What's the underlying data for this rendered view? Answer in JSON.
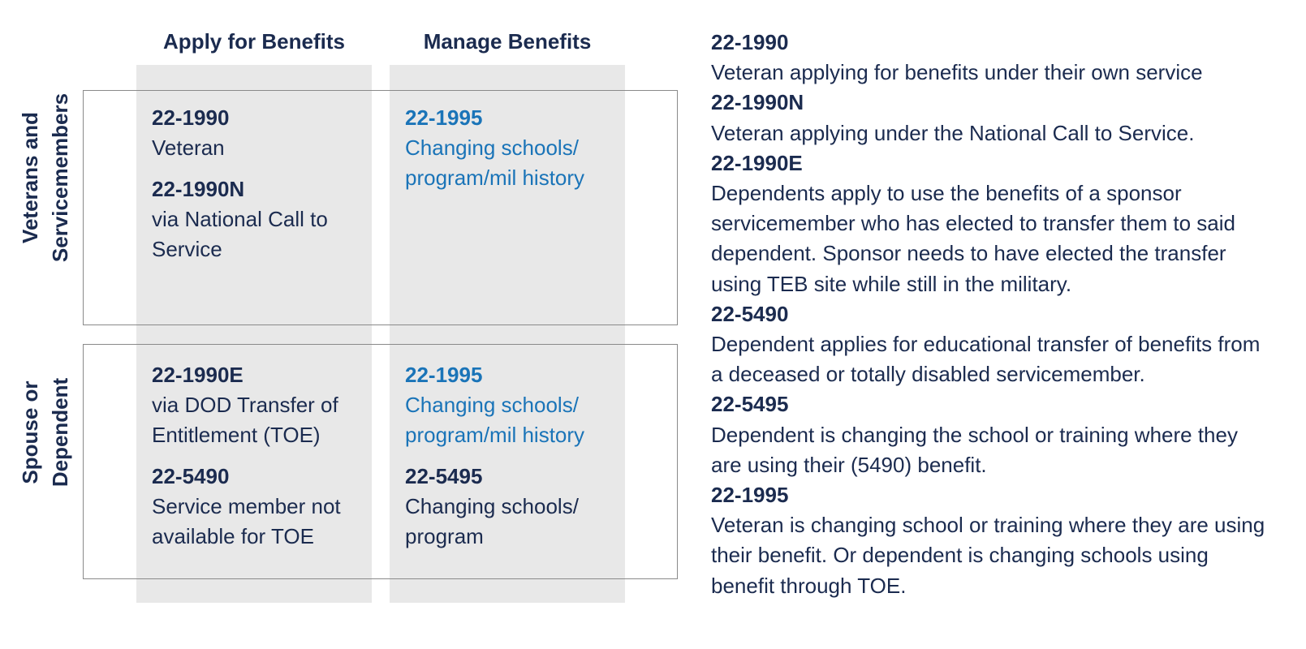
{
  "columns": {
    "apply": "Apply for Benefits",
    "manage": "Manage Benefits"
  },
  "rows": {
    "veterans": {
      "line1": "Veterans and",
      "line2": "Servicemembers"
    },
    "dependents": {
      "line1": "Spouse or",
      "line2": "Dependent"
    }
  },
  "grid": {
    "veterans_apply": [
      {
        "code": "22-1990",
        "desc": "Veteran"
      },
      {
        "code": "22-1990N",
        "desc": "via National Call to Service"
      }
    ],
    "veterans_manage": [
      {
        "code": "22-1995",
        "desc": "Changing schools/ program/mil history"
      }
    ],
    "dependents_apply": [
      {
        "code": "22-1990E",
        "desc": "via DOD Transfer of Entitlement (TOE)"
      },
      {
        "code": "22-5490",
        "desc": "Service member not available for TOE"
      }
    ],
    "dependents_manage": [
      {
        "code": "22-1995",
        "desc": "Changing schools/ program/mil history"
      },
      {
        "code": "22-5495",
        "desc": "Changing schools/ program"
      }
    ]
  },
  "legend": [
    {
      "code": "22-1990",
      "desc": "Veteran applying for benefits under their own service"
    },
    {
      "code": "22-1990N",
      "desc": "Veteran applying under the National Call to Service."
    },
    {
      "code": "22-1990E",
      "desc": "Dependents apply to use the benefits of a sponsor servicemember who has elected to transfer them to said dependent. Sponsor needs to have elected the transfer using TEB site while still in the military."
    },
    {
      "code": "22-5490",
      "desc": "Dependent applies for educational transfer of benefits from a deceased or totally disabled servicemember."
    },
    {
      "code": "22-5495",
      "desc": "Dependent is changing the school or training where they are using their (5490) benefit."
    },
    {
      "code": "22-1995",
      "desc": "Veteran is changing school or training where they are using their benefit. Or dependent is changing schools using benefit through TOE."
    }
  ],
  "colors": {
    "navy": "#1b2b4f",
    "link_blue": "#1a74b8",
    "column_gray": "#e8e8e8",
    "border_gray": "#8a8a8a"
  }
}
